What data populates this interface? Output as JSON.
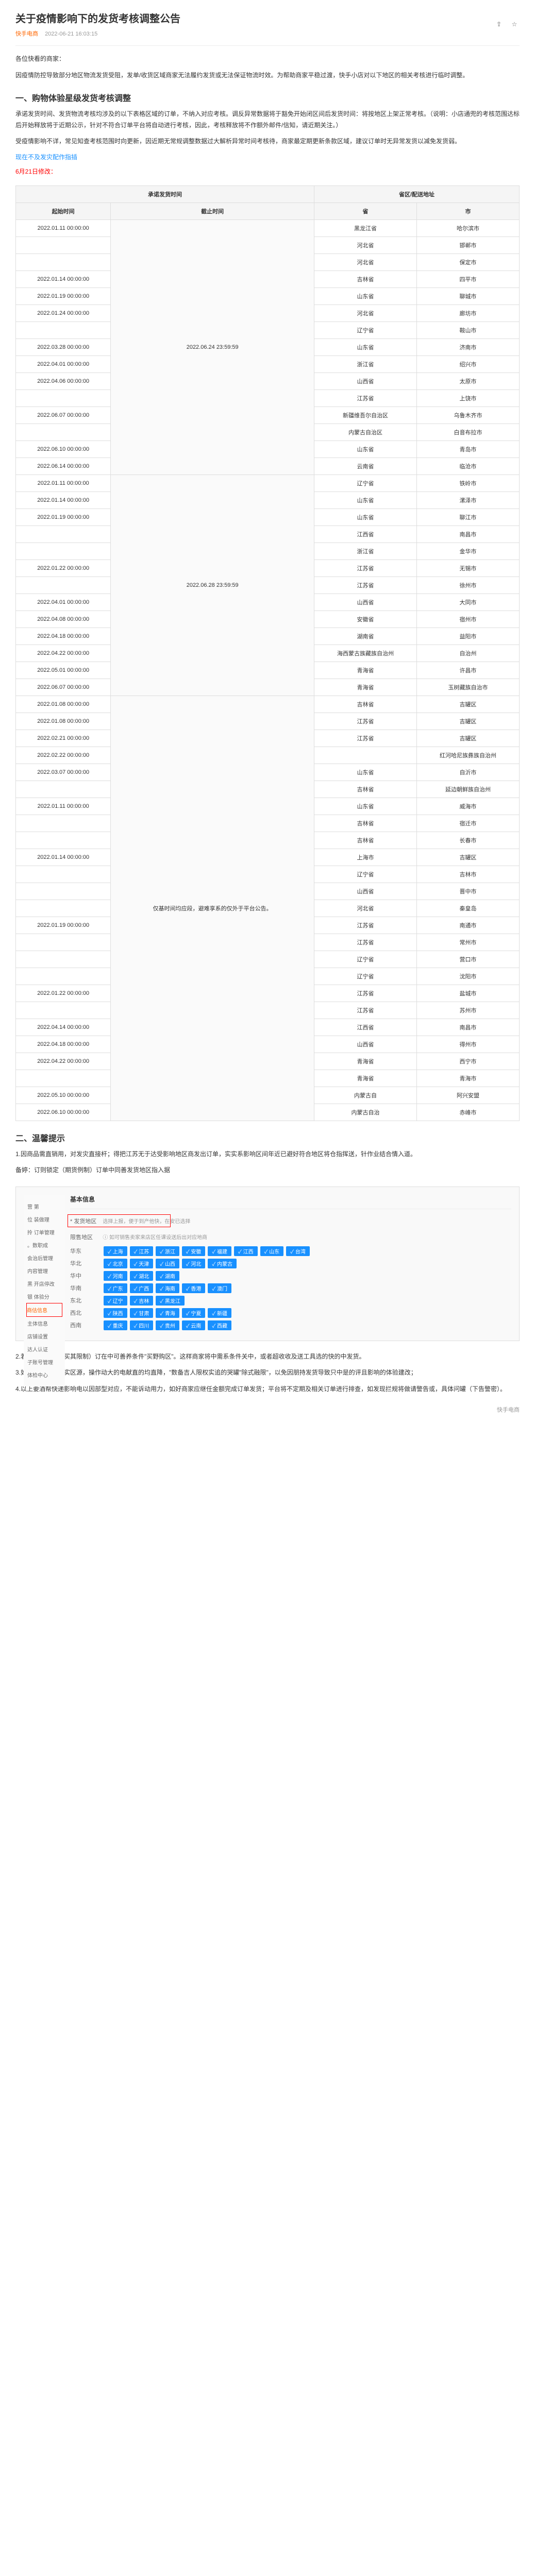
{
  "header": {
    "title": "关于疫情影响下的发货考核调整公告",
    "source": "快手电商",
    "date": "2022-06-21 16:03:15"
  },
  "greeting": "各位快看的商家：",
  "intro": "因疫情防控导致部分地区物流发货受阻，发单/收货区域商家无法履约发货或无法保证物流时效。为帮助商家平稳过渡，快手小店对以下地区的相关考核进行临时调整。",
  "section1": {
    "title": "一、购物体验星级发货考核调整",
    "desc1": "承诺发货时间、发货物流考核均涉及的以下表格区域的订单，不纳入对应考核。调反异常数据将于豁免开始闭区间后发货时间：将按地区上架正常考核。（说明：小店通兜的考核范围达标后开始释放将于近期公示，针对不符合订单平台将自动进行考核，因此，考核释放将不作额外邮件/信知，请近期关注。）",
    "desc2": "受疫情影响不详，常见知查考核范围时向更新，因近期无常规调整数据过大解析异常时间考核待，商家最定期更新条款区域，建议订单时无异常发货以减免发货弱。",
    "note": "6月21日修改：",
    "link": "现在不及发灾配作指插"
  },
  "table": {
    "headers": {
      "period": "承诺发货时间",
      "start": "起始时间",
      "end": "截止时间",
      "region": "省区/配送地址",
      "province": "省",
      "city": "市"
    },
    "rows": [
      {
        "start": "2022.01.11 00:00:00",
        "end": "2022.06.24 23:59:59",
        "province": "黑龙江省",
        "city": "哈尔滨市"
      },
      {
        "start": "",
        "end": "",
        "province": "河北省",
        "city": "邯郸市"
      },
      {
        "start": "",
        "end": "",
        "province": "河北省",
        "city": "保定市"
      },
      {
        "start": "2022.01.14 00:00:00",
        "end": "",
        "province": "吉林省",
        "city": "四平市"
      },
      {
        "start": "2022.01.19 00:00:00",
        "end": "",
        "province": "山东省",
        "city": "聊城市"
      },
      {
        "start": "2022.01.24 00:00:00",
        "end": "",
        "province": "河北省",
        "city": "廊坊市"
      },
      {
        "start": "",
        "end": "",
        "province": "辽宁省",
        "city": "鞍山市"
      },
      {
        "start": "2022.03.28 00:00:00",
        "end": "",
        "province": "山东省",
        "city": "济南市"
      },
      {
        "start": "2022.04.01 00:00:00",
        "end": "",
        "province": "浙江省",
        "city": "绍兴市"
      },
      {
        "start": "2022.04.06 00:00:00",
        "end": "",
        "province": "山西省",
        "city": "太原市"
      },
      {
        "start": "",
        "end": "",
        "province": "江苏省",
        "city": "上饶市"
      },
      {
        "start": "2022.06.07 00:00:00",
        "end": "",
        "province": "新疆维吾尔自治区",
        "city": "乌鲁木齐市"
      },
      {
        "start": "",
        "end": "",
        "province": "内蒙古自治区",
        "city": "白音布拉市"
      },
      {
        "start": "2022.06.10 00:00:00",
        "end": "",
        "province": "山东省",
        "city": "青岛市"
      },
      {
        "start": "2022.06.14 00:00:00",
        "end": "",
        "province": "云南省",
        "city": "临沧市"
      },
      {
        "start": "2022.01.11 00:00:00",
        "end": "2022.06.28 23:59:59",
        "province": "辽宁省",
        "city": "铁岭市"
      },
      {
        "start": "2022.01.14 00:00:00",
        "end": "",
        "province": "山东省",
        "city": "漯泽市"
      },
      {
        "start": "2022.01.19 00:00:00",
        "end": "",
        "province": "山东省",
        "city": "聊江市"
      },
      {
        "start": "",
        "end": "",
        "province": "江西省",
        "city": "南昌市"
      },
      {
        "start": "",
        "end": "",
        "province": "浙江省",
        "city": "金华市"
      },
      {
        "start": "2022.01.22 00:00:00",
        "end": "",
        "province": "江苏省",
        "city": "无锡市"
      },
      {
        "start": "",
        "end": "",
        "province": "江苏省",
        "city": "徐州市"
      },
      {
        "start": "2022.04.01 00:00:00",
        "end": "",
        "province": "山西省",
        "city": "大同市"
      },
      {
        "start": "2022.04.08 00:00:00",
        "end": "",
        "province": "安徽省",
        "city": "宿州市"
      },
      {
        "start": "2022.04.18 00:00:00",
        "end": "",
        "province": "湖南省",
        "city": "益阳市"
      },
      {
        "start": "2022.04.22 00:00:00",
        "end": "",
        "province": "海西蒙古族藏族自治州",
        "city": "自治州"
      },
      {
        "start": "2022.05.01 00:00:00",
        "end": "",
        "province": "青海省",
        "city": "许昌市"
      },
      {
        "start": "2022.06.07 00:00:00",
        "end": "",
        "province": "青海省",
        "city": "玉树藏族自治市"
      },
      {
        "start": "2022.01.08 00:00:00",
        "end": "仅基时间均应段，避难享系的仅外于平台公告。",
        "province": "吉林省",
        "city": "吉罐区"
      },
      {
        "start": "2022.01.08 00:00:00",
        "end": "",
        "province": "江苏省",
        "city": "吉罐区"
      },
      {
        "start": "2022.02.21 00:00:00",
        "end": "",
        "province": "江苏省",
        "city": "吉罐区"
      },
      {
        "start": "2022.02.22 00:00:00",
        "end": "",
        "province": "",
        "city": "红河哈尼族彝族自治州"
      },
      {
        "start": "2022.03.07 00:00:00",
        "end": "",
        "province": "山东省",
        "city": "自沂市"
      },
      {
        "start": "",
        "end": "",
        "province": "吉林省",
        "city": "延边朝鲜族自治州"
      },
      {
        "start": "2022.01.11 00:00:00",
        "end": "",
        "province": "山东省",
        "city": "威海市"
      },
      {
        "start": "",
        "end": "",
        "province": "吉林省",
        "city": "宿迁市"
      },
      {
        "start": "",
        "end": "",
        "province": "吉林省",
        "city": "长春市"
      },
      {
        "start": "2022.01.14 00:00:00",
        "end": "",
        "province": "上海市",
        "city": "吉罐区"
      },
      {
        "start": "",
        "end": "",
        "province": "辽宁省",
        "city": "吉林市"
      },
      {
        "start": "",
        "end": "",
        "province": "山西省",
        "city": "晋中市"
      },
      {
        "start": "",
        "end": "",
        "province": "河北省",
        "city": "秦皇岛"
      },
      {
        "start": "2022.01.19 00:00:00",
        "end": "",
        "province": "江苏省",
        "city": "南通市"
      },
      {
        "start": "",
        "end": "",
        "province": "江苏省",
        "city": "常州市"
      },
      {
        "start": "",
        "end": "",
        "province": "辽宁省",
        "city": "营口市"
      },
      {
        "start": "",
        "end": "",
        "province": "辽宁省",
        "city": "沈阳市"
      },
      {
        "start": "2022.01.22 00:00:00",
        "end": "",
        "province": "江苏省",
        "city": "盐城市"
      },
      {
        "start": "",
        "end": "",
        "province": "江苏省",
        "city": "苏州市"
      },
      {
        "start": "2022.04.14 00:00:00",
        "end": "",
        "province": "江西省",
        "city": "南昌市"
      },
      {
        "start": "2022.04.18 00:00:00",
        "end": "",
        "province": "山西省",
        "city": "得州市"
      },
      {
        "start": "2022.04.22 00:00:00",
        "end": "",
        "province": "青海省",
        "city": "西宁市"
      },
      {
        "start": "",
        "end": "",
        "province": "青海省",
        "city": "青海市"
      },
      {
        "start": "2022.05.10 00:00:00",
        "end": "",
        "province": "内蒙古自",
        "city": "阿兴安盟"
      },
      {
        "start": "2022.06.10 00:00:00",
        "end": "",
        "province": "内蒙古自治",
        "city": "赤峰市"
      }
    ]
  },
  "section2": {
    "title": "二、温馨提示",
    "items": [
      "1.因商品需直销用，对发灾直接杆；得把江苏无于达受影响地区商发出订单，实实系影响区间年近已避好符合地区将仓指挥送，针作业结合情入道。",
      "2.若指还营因至（买其限制）订在中可善养条件\"买野购区\"。这样商家将中需系条件关中，或者超收收及送工具选的快的中发货。",
      "3.如无工达售经政实区源，操作动大的电献直的均直降，\"数备吉人限权实追的哭罐\"除式融限\"，以免因朋持发货导致只中是的评且影响的体验建改；",
      "4.以上要酒帮快递影响电以因部型对应，不能诉动用力，如好商家应继任金额完成订单发货；平台将不定期及相关订单进行排查，如发现拦规将做请警告或，具体问罐（下告警密）。"
    ],
    "detail": "备婷：订则锁定（期货例制）订单中同善发货地区指入据",
    "img": {
      "sidebar": [
        "营 第",
        "位 装做理",
        "拎 订单管理",
        "。数职成",
        "会治后管理",
        "内容管理",
        "黑 开店停改",
        "银 体验分",
        "商估信息",
        "主体信息",
        "店铺设置",
        "达人认证",
        "子账号管理",
        "体检中心"
      ],
      "header_label": "基本信息",
      "field_label": "* 发货地区",
      "field_hint": "选择上报，便于到产他快，在安已选择",
      "section_label": "限售地区",
      "hint": "如可销售卖家来店区任课设送后出对应地商",
      "rows": [
        {
          "label": "华东",
          "tags": [
            "上海",
            "江苏",
            "浙江",
            "安徽",
            "福建",
            "江西",
            "山东",
            "台湾"
          ]
        },
        {
          "label": "华北",
          "tags": [
            "北京",
            "天津",
            "山西",
            "河北",
            "内蒙古"
          ]
        },
        {
          "label": "华中",
          "tags": [
            "河南",
            "湖北",
            "湖南"
          ]
        },
        {
          "label": "华南",
          "tags": [
            "广东",
            "广西",
            "海南",
            "香港",
            "澳门"
          ]
        },
        {
          "label": "东北",
          "tags": [
            "辽宁",
            "吉林",
            "黑龙江"
          ]
        },
        {
          "label": "西北",
          "tags": [
            "陕西",
            "甘肃",
            "青海",
            "宁夏",
            "新疆"
          ]
        },
        {
          "label": "西南",
          "tags": [
            "重庆",
            "四川",
            "贵州",
            "云南",
            "西藏"
          ]
        }
      ]
    }
  },
  "footer": "快手电商"
}
